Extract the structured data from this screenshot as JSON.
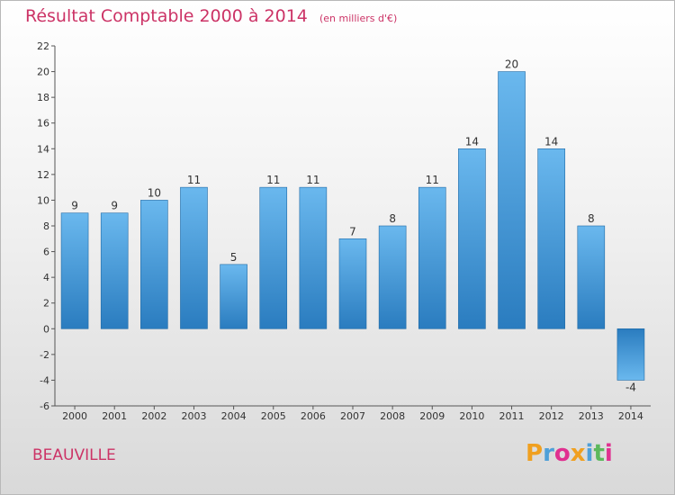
{
  "header": {
    "title": "Résultat Comptable 2000 à 2014",
    "subtitle": "(en milliers d'€)"
  },
  "commune": "BEAUVILLE",
  "logo": {
    "text": "Proxiti",
    "letters": [
      {
        "ch": "P",
        "color": "#f0a020"
      },
      {
        "ch": "r",
        "color": "#4fa0d8"
      },
      {
        "ch": "o",
        "color": "#e03090"
      },
      {
        "ch": "x",
        "color": "#f0a020"
      },
      {
        "ch": "i",
        "color": "#4fa0d8"
      },
      {
        "ch": "t",
        "color": "#5cb85c"
      },
      {
        "ch": "i",
        "color": "#e03090"
      }
    ]
  },
  "chart_data": {
    "type": "bar",
    "title": "Résultat Comptable 2000 à 2014",
    "subtitle": "(en milliers d'€)",
    "categories": [
      "2000",
      "2001",
      "2002",
      "2003",
      "2004",
      "2005",
      "2006",
      "2007",
      "2008",
      "2009",
      "2010",
      "2011",
      "2012",
      "2013",
      "2014"
    ],
    "values": [
      9,
      9,
      10,
      11,
      5,
      11,
      11,
      7,
      8,
      11,
      14,
      20,
      14,
      8,
      -4
    ],
    "ylim": [
      -6,
      22
    ],
    "yticks": [
      -6,
      -4,
      -2,
      0,
      2,
      4,
      6,
      8,
      10,
      12,
      14,
      16,
      18,
      20,
      22
    ],
    "xlabel": "",
    "ylabel": "",
    "grid": false,
    "colors": {
      "bar_top": "#6ab8ee",
      "bar_bottom": "#2a7cbf",
      "bar_edge": "#1f6aa6",
      "axis": "#555555",
      "label": "#333333"
    }
  }
}
